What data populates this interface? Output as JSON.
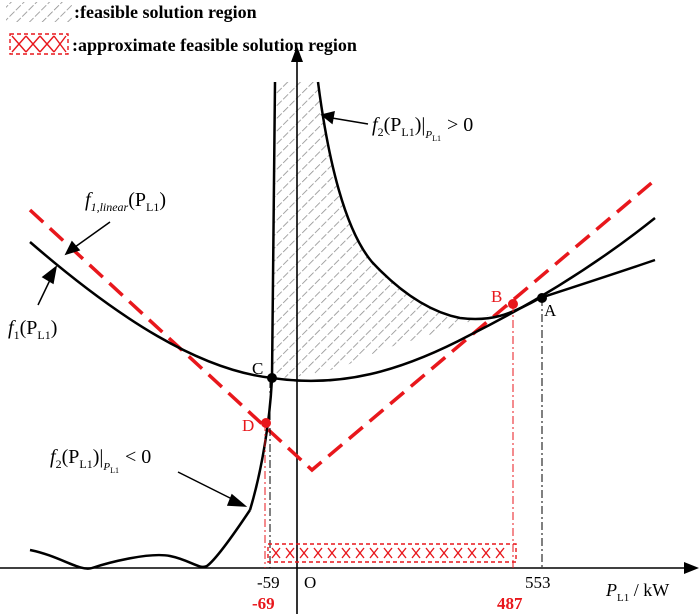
{
  "legend": {
    "feasible": ":feasible solution region",
    "approx": ":approximate feasible solution region"
  },
  "points": {
    "A": "A",
    "B": "B",
    "C": "C",
    "D": "D",
    "origin": "O"
  },
  "ticks": {
    "neg59": "-59",
    "val553": "553",
    "neg69": "-69",
    "val487": "487"
  },
  "labels": {
    "f1": "f",
    "f1_sub": "1",
    "f1_arg": "(P",
    "f1_arg_sub": "L1",
    "f1_close": ")",
    "f1lin": "f",
    "f1lin_sub": "1,linear",
    "f1lin_arg": "(P",
    "f1lin_arg_sub": "L1",
    "f1lin_close": ")",
    "f2pos": "f",
    "f2pos_sub": "2",
    "f2pos_arg": "(P",
    "f2pos_arg_sub": "L1",
    "f2pos_close": ")|",
    "f2pos_bar_sub": "P",
    "f2pos_bar_subsub": "L1",
    "f2pos_rel": "> 0",
    "f2neg": "f",
    "f2neg_sub": "2",
    "f2neg_arg": "(P",
    "f2neg_arg_sub": "L1",
    "f2neg_close": ")|",
    "f2neg_bar_sub": "P",
    "f2neg_bar_subsub": "L1",
    "f2neg_rel": "< 0"
  },
  "axis": {
    "x_label": "P",
    "x_label_sub": "L1",
    "x_unit": " / kW"
  },
  "colors": {
    "curve": "#000000",
    "linear": "#e8171c",
    "hatch": "#9a9a9a"
  }
}
